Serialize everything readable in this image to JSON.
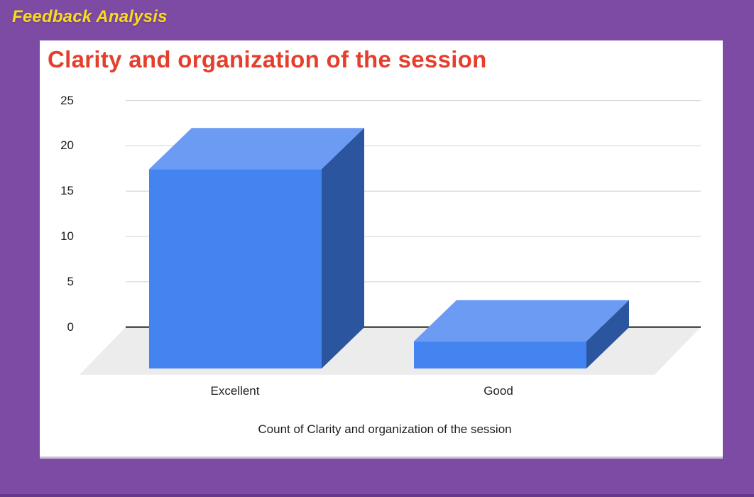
{
  "page": {
    "title": "Feedback Analysis",
    "background_color": "#7D4BA3",
    "title_color": "#F7DB21",
    "bottom_strip_color": "#63398A",
    "card_color": "#FFFFFF"
  },
  "chart_data": {
    "type": "bar",
    "variant": "3d-column",
    "title": "Clarity and organization of the session",
    "xlabel": "Count of Clarity and organization of the session",
    "ylabel": "",
    "categories": [
      "Excellent",
      "Good"
    ],
    "values": [
      22,
      3
    ],
    "ylim": [
      0,
      25
    ],
    "yticks": [
      0,
      5,
      10,
      15,
      20,
      25
    ],
    "grid": true,
    "legend": "none",
    "colors": {
      "title": "#E53E2C",
      "bar_front": "#4384F1",
      "bar_top": "#6B9BF2",
      "bar_side": "#2B559E",
      "gridline": "#D8D8D8",
      "zero_line": "#424242",
      "floor": "#ECECEC",
      "axis_text": "#1F1F1F"
    }
  }
}
